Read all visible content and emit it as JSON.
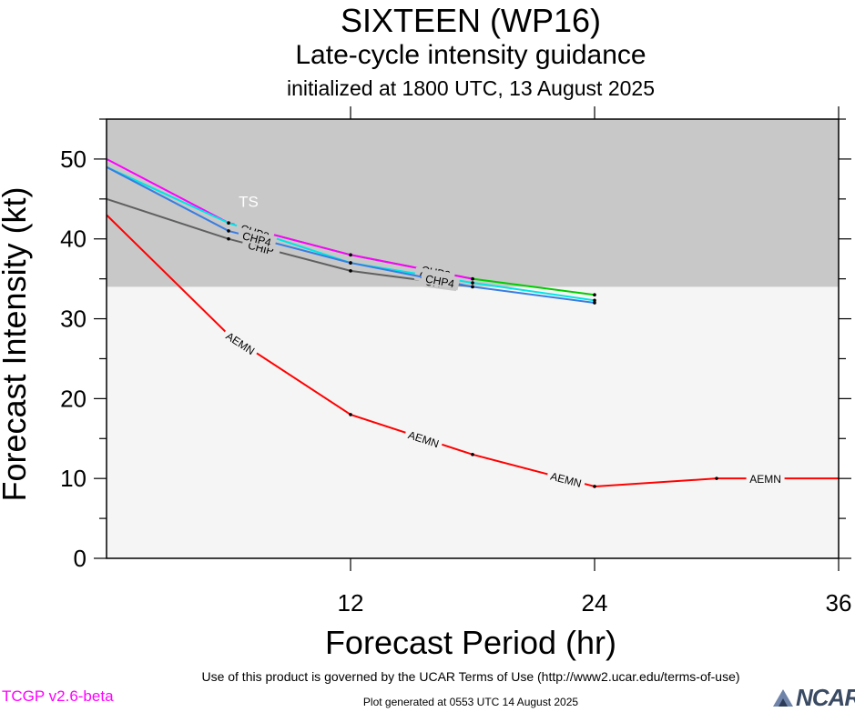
{
  "header": {
    "title": "SIXTEEN (WP16)",
    "subtitle": "Late-cycle intensity guidance",
    "init_line": "initialized at 1800 UTC, 13 August 2025"
  },
  "footer": {
    "terms": "Use of this product is governed by the UCAR Terms of Use (http://www2.ucar.edu/terms-of-use)",
    "generated": "Plot generated at 0553 UTC   14 August 2025",
    "version": "TCGP v2.6-beta",
    "logo_text": "NCAR"
  },
  "chart_data": {
    "type": "line",
    "title": "SIXTEEN (WP16)",
    "subtitle": "Late-cycle intensity guidance",
    "xlabel": "Forecast Period (hr)",
    "ylabel": "Forecast Intensity (kt)",
    "xlim": [
      0,
      36
    ],
    "ylim": [
      0,
      55
    ],
    "xticks": [
      12,
      24,
      36
    ],
    "yticks": [
      0,
      10,
      20,
      30,
      40,
      50
    ],
    "grid": false,
    "band": {
      "label": "TS",
      "from": 34,
      "to": 55,
      "color": "#c8c8c8"
    },
    "below_band_color": "#f5f5f5",
    "series": [
      {
        "name": "AEMN",
        "color": "#ff0000",
        "x": [
          0,
          6,
          12,
          18,
          24,
          30,
          36
        ],
        "y": [
          43,
          28,
          18,
          13,
          9,
          10,
          10
        ],
        "label_x": [
          6.6,
          15.6,
          22.6,
          32.4
        ]
      },
      {
        "name": "CHIP",
        "color": "#606060",
        "x": [
          0,
          6,
          12,
          18
        ],
        "y": [
          45,
          40,
          36,
          34
        ],
        "label_x": [
          7.6,
          16.3
        ]
      },
      {
        "name": "CHP1",
        "color": "#00cc00",
        "x": [
          6,
          12,
          18,
          24
        ],
        "y": [
          42,
          38,
          35,
          33
        ],
        "label_x": [
          7.2,
          16.0
        ]
      },
      {
        "name": "CHP2",
        "color": "#ff00ff",
        "x": [
          0,
          6,
          12,
          18
        ],
        "y": [
          50,
          42,
          38,
          35
        ],
        "label_x": [
          7.2,
          16.2
        ]
      },
      {
        "name": "CHP3",
        "color": "#00e5e5",
        "x": [
          0,
          6,
          12,
          18,
          24
        ],
        "y": [
          49,
          42,
          37,
          34.5,
          32.3
        ],
        "label_x": [
          7.3,
          16.1
        ]
      },
      {
        "name": "CHP4",
        "color": "#3a7de0",
        "x": [
          0,
          6,
          12,
          18,
          24
        ],
        "y": [
          49,
          41,
          37,
          34,
          32
        ],
        "label_x": [
          7.4,
          16.4
        ]
      }
    ]
  }
}
